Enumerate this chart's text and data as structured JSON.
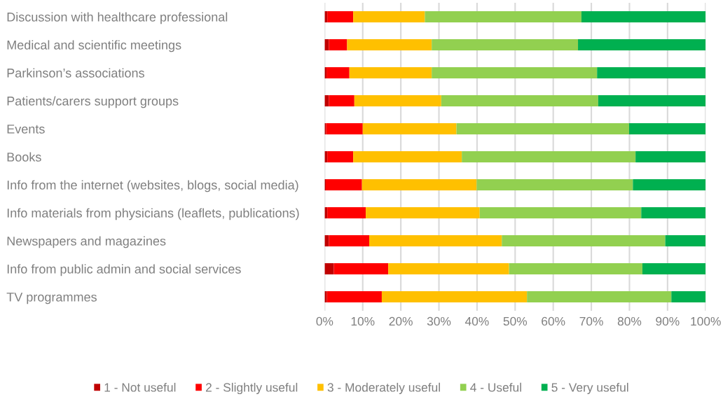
{
  "chart_data": {
    "type": "bar",
    "orientation": "horizontal",
    "stacked": true,
    "categories": [
      "Discussion with healthcare professional",
      "Medical and scientific meetings",
      "Parkinson’s associations",
      "Patients/carers support groups",
      "Events",
      "Books",
      "Info from the internet (websites, blogs, social media)",
      "Info materials from physicians (leaflets, publications)",
      "Newspapers and magazines",
      "Info from public admin and social services",
      "TV programmes"
    ],
    "series": [
      {
        "name": "1 - Not useful",
        "color": "#c00000",
        "values": [
          0.7,
          1.1,
          0.5,
          1.1,
          0.4,
          0.7,
          0.3,
          0.7,
          1.1,
          2.4,
          0.6
        ]
      },
      {
        "name": "2 - Slightly useful",
        "color": "#ff0000",
        "values": [
          6.8,
          4.8,
          6.0,
          6.7,
          9.6,
          6.8,
          9.5,
          10.1,
          10.6,
          14.3,
          14.4
        ]
      },
      {
        "name": "3 - Moderately useful",
        "color": "#ffc000",
        "values": [
          18.8,
          22.2,
          21.6,
          22.8,
          24.6,
          28.5,
          30.1,
          29.9,
          34.8,
          31.7,
          38.1
        ]
      },
      {
        "name": "4 - Useful",
        "color": "#92d050",
        "values": [
          41.1,
          38.4,
          43.4,
          41.2,
          45.3,
          45.6,
          41.0,
          42.4,
          42.9,
          35.0,
          37.9
        ]
      },
      {
        "name": "5 - Very useful",
        "color": "#00b050",
        "values": [
          32.6,
          33.5,
          28.5,
          28.2,
          20.1,
          18.4,
          19.1,
          16.9,
          10.6,
          16.6,
          9.0
        ]
      }
    ],
    "xlim": [
      0,
      100
    ],
    "xticks": [
      {
        "value": 0,
        "label": "0%"
      },
      {
        "value": 10,
        "label": "10%"
      },
      {
        "value": 20,
        "label": "20%"
      },
      {
        "value": 30,
        "label": "30%"
      },
      {
        "value": 40,
        "label": "40%"
      },
      {
        "value": 50,
        "label": "50%"
      },
      {
        "value": 60,
        "label": "60%"
      },
      {
        "value": 70,
        "label": "70%"
      },
      {
        "value": 80,
        "label": "80%"
      },
      {
        "value": 90,
        "label": "90%"
      },
      {
        "value": 100,
        "label": "100%"
      }
    ],
    "grid": "x",
    "legend": "bottom"
  }
}
